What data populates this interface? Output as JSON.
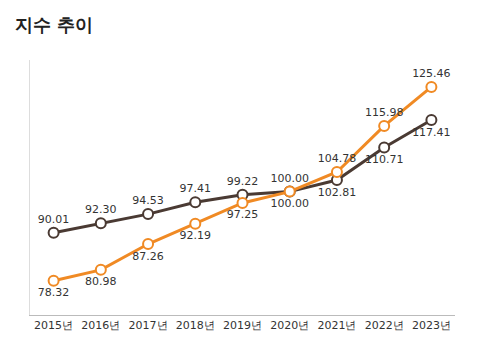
{
  "chart_data": {
    "type": "line",
    "title": "지수 추이",
    "categories": [
      "2015년",
      "2016년",
      "2017년",
      "2018년",
      "2019년",
      "2020년",
      "2021년",
      "2022년",
      "2023년"
    ],
    "series": [
      {
        "color": "#4a3a33",
        "marker": "circle",
        "values": [
          90.01,
          92.3,
          94.53,
          97.41,
          99.22,
          100.0,
          102.81,
          110.71,
          117.41
        ],
        "value_labels": [
          "90.01",
          "92.30",
          "94.53",
          "97.41",
          "99.22",
          "100.00",
          "102.81",
          "110.71",
          "117.41"
        ]
      },
      {
        "color": "#f08a24",
        "marker": "circle",
        "values": [
          78.32,
          80.98,
          87.26,
          92.19,
          97.25,
          100.0,
          104.78,
          115.98,
          125.46
        ],
        "value_labels": [
          "78.32",
          "80.98",
          "87.26",
          "92.19",
          "97.25",
          "100.00",
          "104.78",
          "115.98",
          "125.46"
        ]
      }
    ],
    "ylim": [
      70,
      132
    ],
    "data_labels": true,
    "tick_labels": "x",
    "grid": false
  }
}
